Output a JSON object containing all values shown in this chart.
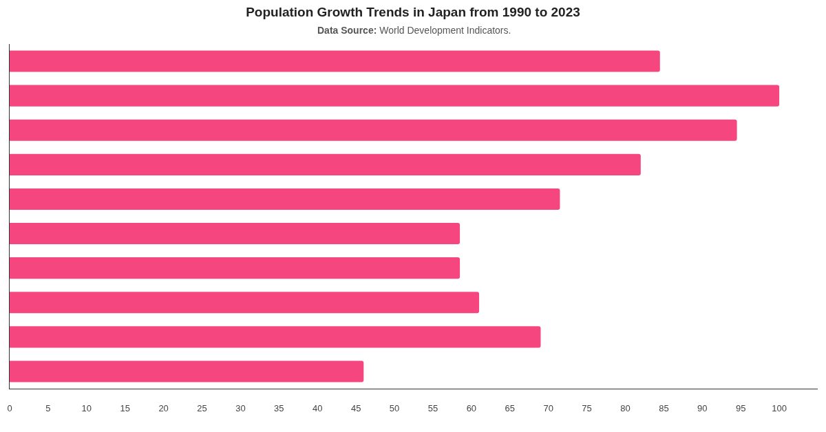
{
  "chart_data": {
    "type": "bar",
    "orientation": "horizontal",
    "title": "Population Growth Trends in Japan from 1990 to 2023",
    "subtitle": "Data Source: World Development Indicators.",
    "categories": [
      null,
      null,
      null,
      null,
      null,
      null,
      null,
      null,
      null,
      null
    ],
    "values": [
      84.5,
      100,
      94.5,
      82,
      71.5,
      58.5,
      58.5,
      61,
      69,
      46
    ],
    "color": "#f6467f",
    "xlim": [
      0,
      105
    ],
    "xticks": [
      0,
      5,
      10,
      15,
      20,
      25,
      30,
      35,
      40,
      45,
      50,
      55,
      60,
      65,
      70,
      75,
      80,
      85,
      90,
      95,
      100
    ],
    "tick_labels": "x"
  }
}
